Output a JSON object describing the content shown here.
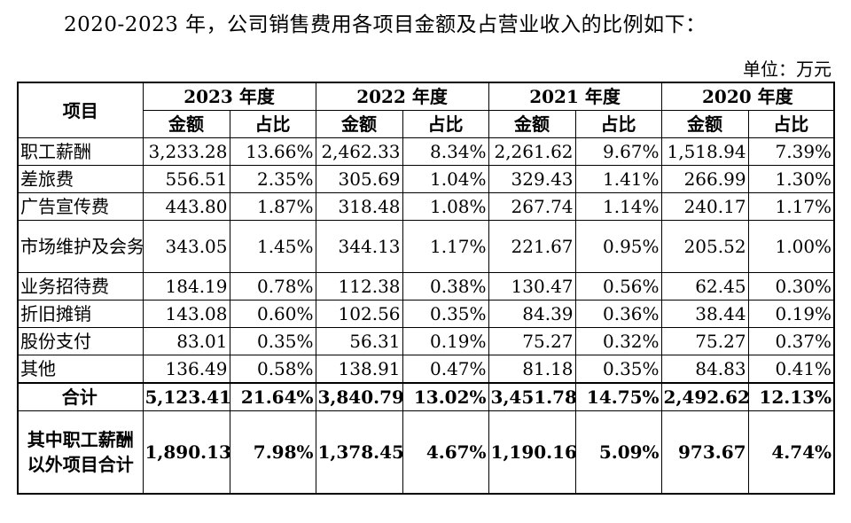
{
  "intro": "2020-2023 年，公司销售费用各项目金额及占营业收入的比例如下：",
  "unit": "单位：万元",
  "table": {
    "item_header": "项目",
    "years": [
      "2023 年度",
      "2022 年度",
      "2021 年度",
      "2020 年度"
    ],
    "sub_headers": {
      "amount": "金额",
      "ratio": "占比"
    },
    "rows": [
      {
        "name": "职工薪酬",
        "cells": [
          "3,233.28",
          "13.66%",
          "2,462.33",
          "8.34%",
          "2,261.62",
          "9.67%",
          "1,518.94",
          "7.39%"
        ]
      },
      {
        "name": "差旅费",
        "cells": [
          "556.51",
          "2.35%",
          "305.69",
          "1.04%",
          "329.43",
          "1.41%",
          "266.99",
          "1.30%"
        ]
      },
      {
        "name": "广告宣传费",
        "cells": [
          "443.80",
          "1.87%",
          "318.48",
          "1.08%",
          "267.74",
          "1.14%",
          "240.17",
          "1.17%"
        ]
      },
      {
        "name": "市场维护及会务费",
        "cells": [
          "343.05",
          "1.45%",
          "344.13",
          "1.17%",
          "221.67",
          "0.95%",
          "205.52",
          "1.00%"
        ]
      },
      {
        "name": "业务招待费",
        "cells": [
          "184.19",
          "0.78%",
          "112.38",
          "0.38%",
          "130.47",
          "0.56%",
          "62.45",
          "0.30%"
        ]
      },
      {
        "name": "折旧摊销",
        "cells": [
          "143.08",
          "0.60%",
          "102.56",
          "0.35%",
          "84.39",
          "0.36%",
          "38.44",
          "0.19%"
        ]
      },
      {
        "name": "股份支付",
        "cells": [
          "83.01",
          "0.35%",
          "56.31",
          "0.19%",
          "75.27",
          "0.32%",
          "75.27",
          "0.37%"
        ]
      },
      {
        "name": "其他",
        "cells": [
          "136.49",
          "0.58%",
          "138.91",
          "0.47%",
          "81.18",
          "0.35%",
          "84.83",
          "0.41%"
        ]
      }
    ],
    "total": {
      "name": "合计",
      "cells": [
        "5,123.41",
        "21.64%",
        "3,840.79",
        "13.02%",
        "3,451.78",
        "14.75%",
        "2,492.62",
        "12.13%"
      ]
    },
    "excl_total": {
      "name": "其中职工薪酬以外项目合计",
      "cells": [
        "1,890.13",
        "7.98%",
        "1,378.45",
        "4.67%",
        "1,190.16",
        "5.09%",
        "973.67",
        "4.74%"
      ]
    }
  }
}
